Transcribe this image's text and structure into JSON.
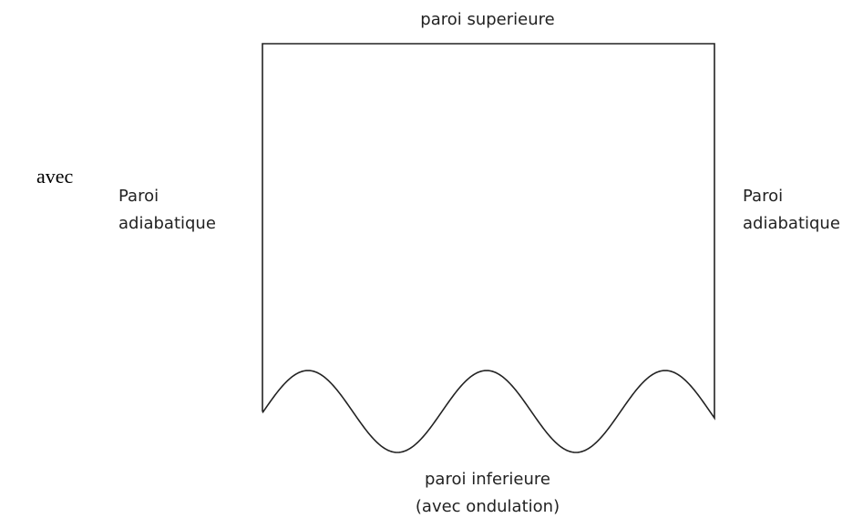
{
  "intro": "avec",
  "top_wall": "paroi superieure",
  "left_wall": {
    "line1": "Paroi",
    "line2": "adiabatique"
  },
  "right_wall": {
    "line1": "Paroi",
    "line2": "adiabatique"
  },
  "bottom_wall": {
    "line1": "paroi inferieure",
    "line2": "(avec ondulation)"
  }
}
